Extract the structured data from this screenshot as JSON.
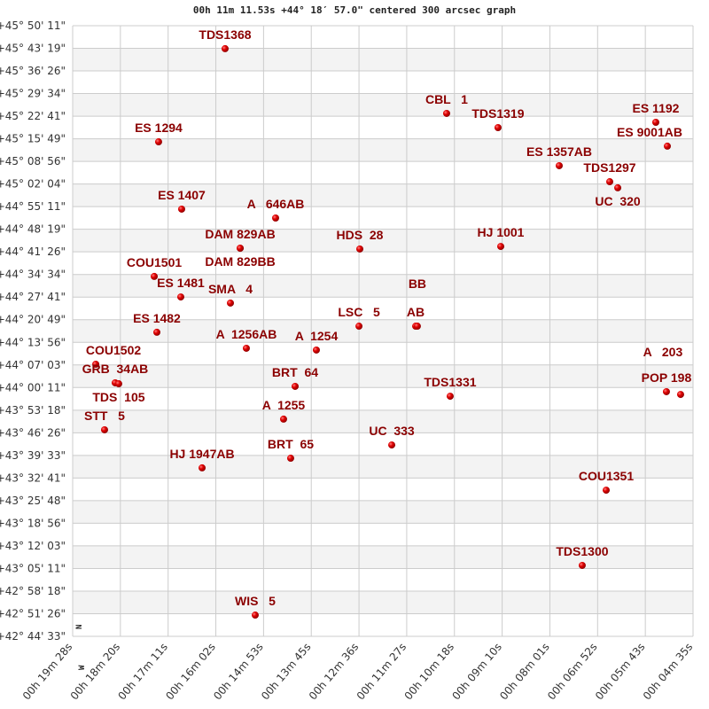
{
  "chart_data": {
    "type": "scatter",
    "title": "00h 11m 11.53s +44° 18′ 57.0\" centered 300 arcsec graph",
    "x_axis": {
      "quantity": "right ascension (minutes of time, 00h)",
      "reversed": true,
      "range_min": [
        19.4667,
        4.5833
      ],
      "tick_labels": [
        "00h 19m 28s",
        "00h 18m 20s",
        "00h 17m 11s",
        "00h 16m 02s",
        "00h 14m 53s",
        "00h 13m 45s",
        "00h 12m 36s",
        "00h 11m 27s",
        "00h 10m 18s",
        "00h 09m 10s",
        "00h 08m 01s",
        "00h 06m 52s",
        "00h 05m 43s",
        "00h 04m 35s"
      ]
    },
    "y_axis": {
      "quantity": "declination (degrees)",
      "range_deg": [
        42.7425,
        45.8364
      ],
      "tick_labels": [
        "+45° 50' 11\"",
        "+45° 43' 19\"",
        "+45° 36' 26\"",
        "+45° 29' 34\"",
        "+45° 22' 41\"",
        "+45° 15' 49\"",
        "+45° 08' 56\"",
        "+45° 02' 04\"",
        "+44° 55' 11\"",
        "+44° 48' 19\"",
        "+44° 41' 26\"",
        "+44° 34' 34\"",
        "+44° 27' 41\"",
        "+44° 20' 49\"",
        "+44° 13' 56\"",
        "+44° 07' 03\"",
        "+44° 00' 11\"",
        "+43° 53' 18\"",
        "+43° 46' 26\"",
        "+43° 39' 33\"",
        "+43° 32' 41\"",
        "+43° 25' 48\"",
        "+43° 18' 56\"",
        "+43° 12' 03\"",
        "+43° 05' 11\"",
        "+42° 58' 18\"",
        "+42° 51' 26\"",
        "+42° 44' 33\""
      ]
    },
    "grid": true,
    "compass": [
      "N",
      "W"
    ],
    "colors": {
      "point": "#dd0000",
      "label": "#8b0000",
      "grid": "#cccccc",
      "band": "#f3f3f3"
    },
    "points": [
      {
        "name": "TDS1368",
        "ra_min": 15.81,
        "dec": 45.72
      },
      {
        "name": "CBL   1",
        "ra_min": 10.495,
        "dec": 45.392
      },
      {
        "name": "TDS1319",
        "ra_min": 9.262,
        "dec": 45.32
      },
      {
        "name": "ES 1192",
        "ra_min": 5.477,
        "dec": 45.347
      },
      {
        "name": "ES 9001AB",
        "ra_min": 5.2,
        "dec": 45.226
      },
      {
        "name": "ES 1294",
        "ra_min": 17.405,
        "dec": 45.248
      },
      {
        "name": "ES 1357AB",
        "ra_min": 7.794,
        "dec": 45.127
      },
      {
        "name": "TDS1297",
        "ra_min": 6.582,
        "dec": 45.046
      },
      {
        "name": "UC  320",
        "ra_min": 6.39,
        "dec": 45.015
      },
      {
        "name": "ES 1407",
        "ra_min": 16.852,
        "dec": 44.907
      },
      {
        "name": "A   646AB",
        "ra_min": 14.598,
        "dec": 44.862
      },
      {
        "name": "DAM 829AB",
        "ra_min": 15.448,
        "dec": 44.709
      },
      {
        "name": "DAM 829BB",
        "ra_min": 15.448,
        "dec": 44.709
      },
      {
        "name": "HDS  28",
        "ra_min": 12.578,
        "dec": 44.705
      },
      {
        "name": "HJ 1001",
        "ra_min": 9.197,
        "dec": 44.718
      },
      {
        "name": "COU1501",
        "ra_min": 17.51,
        "dec": 44.566
      },
      {
        "name": "ES 1481",
        "ra_min": 16.873,
        "dec": 44.462
      },
      {
        "name": "SMA   4",
        "ra_min": 15.682,
        "dec": 44.431
      },
      {
        "name": "LSC   5",
        "ra_min": 12.598,
        "dec": 44.314
      },
      {
        "name": "AB",
        "ra_min": 11.238,
        "dec": 44.314
      },
      {
        "name": "BB",
        "ra_min": 11.197,
        "dec": 44.314
      },
      {
        "name": "ES 1482",
        "ra_min": 17.447,
        "dec": 44.283
      },
      {
        "name": "A  1256AB",
        "ra_min": 15.3,
        "dec": 44.202
      },
      {
        "name": "A  1254",
        "ra_min": 13.62,
        "dec": 44.193
      },
      {
        "name": "COU1502",
        "ra_min": 18.913,
        "dec": 44.121
      },
      {
        "name": "GRB  34AB",
        "ra_min": 18.447,
        "dec": 44.027
      },
      {
        "name": "TDS  105",
        "ra_min": 18.362,
        "dec": 44.022
      },
      {
        "name": "BRT  64",
        "ra_min": 14.13,
        "dec": 44.009
      },
      {
        "name": "TDS1331",
        "ra_min": 10.41,
        "dec": 43.959
      },
      {
        "name": "POP 198",
        "ra_min": 5.222,
        "dec": 43.982
      },
      {
        "name": "A   203",
        "ra_min": 4.882,
        "dec": 43.968
      },
      {
        "name": "A  1255",
        "ra_min": 14.407,
        "dec": 43.843
      },
      {
        "name": "STT   5",
        "ra_min": 18.702,
        "dec": 43.789
      },
      {
        "name": "UC  333",
        "ra_min": 11.812,
        "dec": 43.712
      },
      {
        "name": "HJ 1947AB",
        "ra_min": 16.362,
        "dec": 43.596
      },
      {
        "name": "BRT  65",
        "ra_min": 14.237,
        "dec": 43.645
      },
      {
        "name": "COU1351",
        "ra_min": 6.667,
        "dec": 43.483
      },
      {
        "name": "TDS1300",
        "ra_min": 7.242,
        "dec": 43.102
      },
      {
        "name": "WIS   5",
        "ra_min": 15.087,
        "dec": 42.85
      }
    ]
  }
}
